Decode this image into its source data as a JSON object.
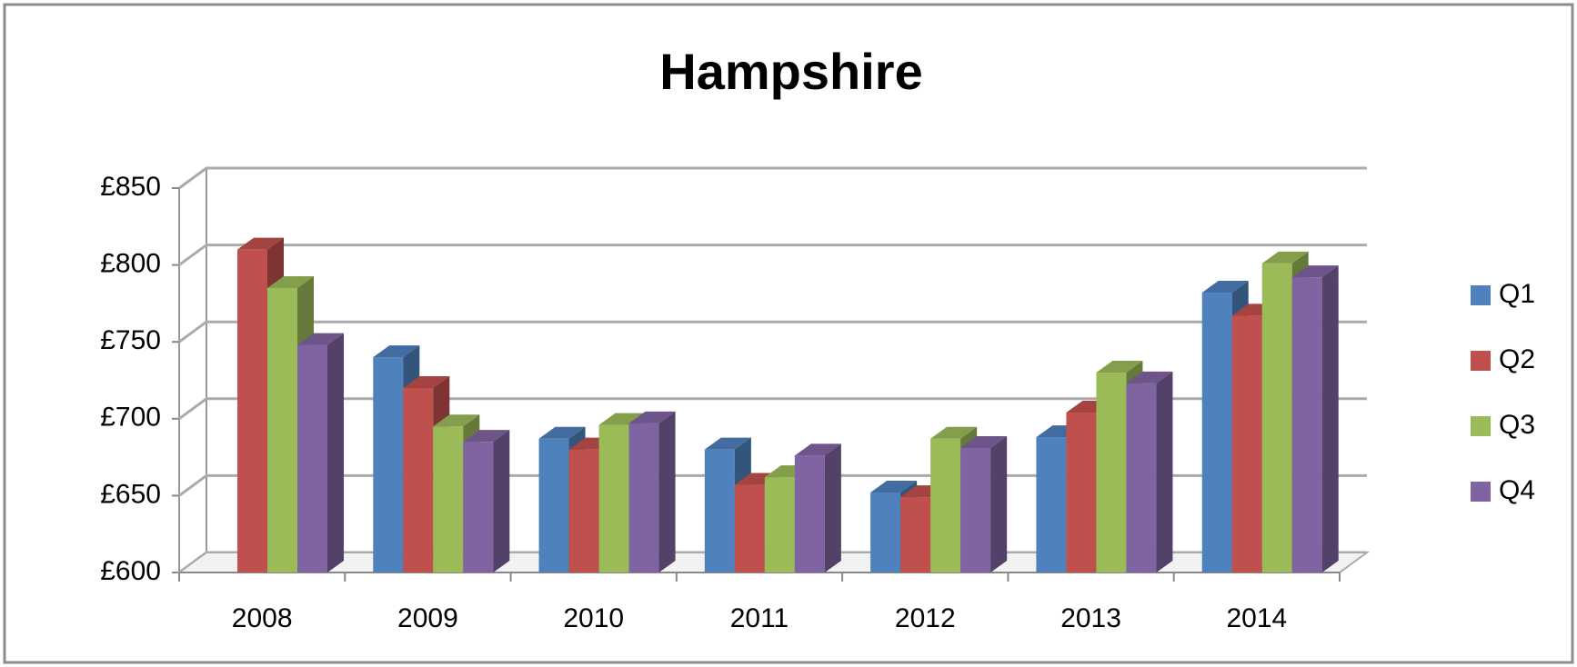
{
  "chart_data": {
    "type": "bar3d",
    "title": "Hampshire",
    "categories": [
      "2008",
      "2009",
      "2010",
      "2011",
      "2012",
      "2013",
      "2014"
    ],
    "series": [
      {
        "name": "Q1",
        "color": "#4f81bd",
        "values": [
          null,
          740,
          687,
          680,
          652,
          688,
          782
        ]
      },
      {
        "name": "Q2",
        "color": "#c0504d",
        "values": [
          810,
          720,
          680,
          657,
          649,
          704,
          767
        ]
      },
      {
        "name": "Q3",
        "color": "#9bbb59",
        "values": [
          785,
          695,
          696,
          662,
          687,
          730,
          801
        ]
      },
      {
        "name": "Q4",
        "color": "#8064a2",
        "values": [
          748,
          685,
          697,
          676,
          681,
          723,
          792
        ]
      }
    ],
    "ylim": [
      600,
      850
    ],
    "yticks": [
      {
        "value": 600,
        "label": "£600"
      },
      {
        "value": 650,
        "label": "£650"
      },
      {
        "value": 700,
        "label": "£700"
      },
      {
        "value": 750,
        "label": "£750"
      },
      {
        "value": 800,
        "label": "£800"
      },
      {
        "value": 850,
        "label": "£850"
      }
    ],
    "grid": true,
    "legend": "right"
  }
}
